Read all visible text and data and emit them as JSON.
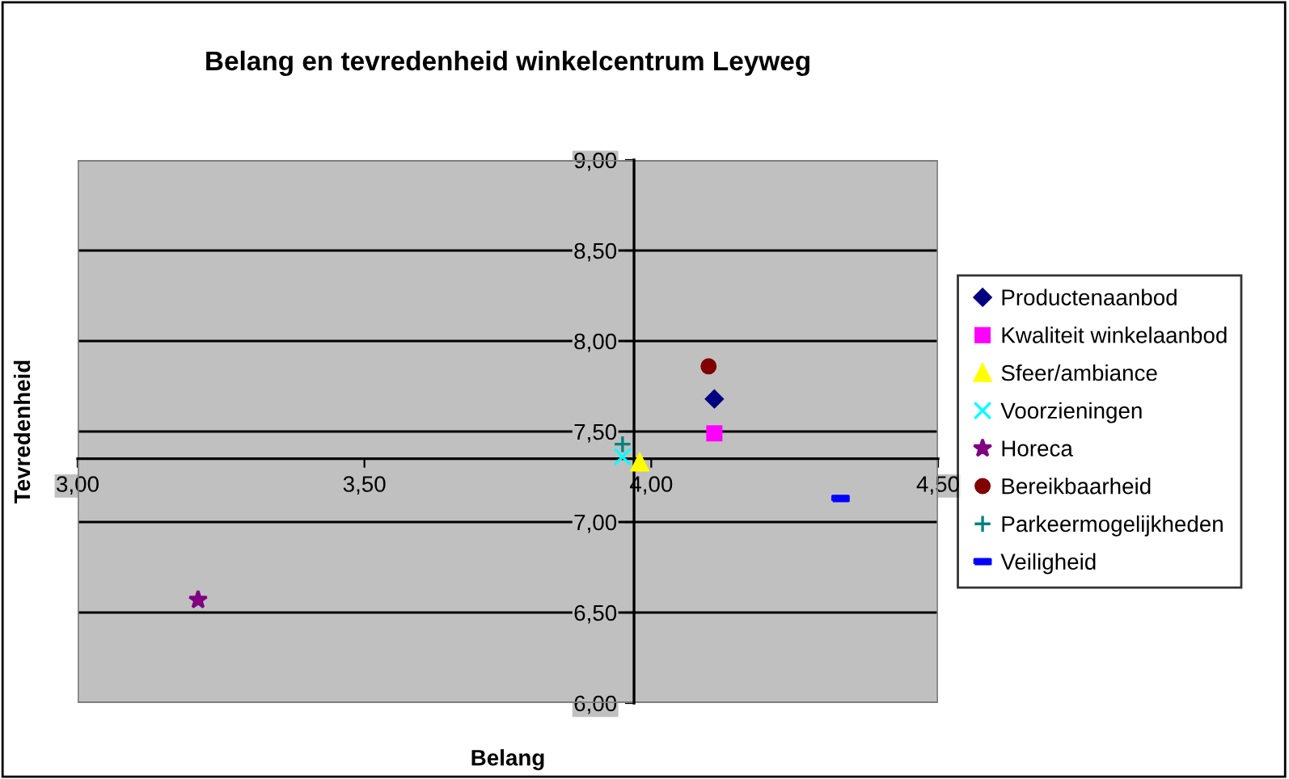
{
  "chart_data": {
    "type": "scatter",
    "title": "Belang en tevredenheid winkelcentrum Leyweg",
    "xlabel": "Belang",
    "ylabel": "Tevredenheid",
    "series": [
      {
        "name": "Productenaanbod",
        "color": "#000080",
        "marker": "diamond",
        "x": [
          4.11
        ],
        "values": [
          7.68
        ]
      },
      {
        "name": "Kwaliteit winkelaanbod",
        "color": "#ff00ff",
        "marker": "square",
        "x": [
          4.11
        ],
        "values": [
          7.49
        ]
      },
      {
        "name": "Sfeer/ambiance",
        "color": "#ffff00",
        "marker": "triangle",
        "x": [
          3.98
        ],
        "values": [
          7.33
        ]
      },
      {
        "name": "Voorzieningen",
        "color": "#00ffff",
        "marker": "cross",
        "x": [
          3.95
        ],
        "values": [
          7.36
        ]
      },
      {
        "name": "Horeca",
        "color": "#800080",
        "marker": "star",
        "x": [
          3.21
        ],
        "values": [
          6.57
        ]
      },
      {
        "name": "Bereikbaarheid",
        "color": "#800000",
        "marker": "circle",
        "x": [
          4.1
        ],
        "values": [
          7.86
        ]
      },
      {
        "name": "Parkeermogelijkheden",
        "color": "#008080",
        "marker": "plus",
        "x": [
          3.95
        ],
        "values": [
          7.43
        ]
      },
      {
        "name": "Veiligheid",
        "color": "#0000ff",
        "x": [
          4.33
        ],
        "values": [
          7.13
        ]
      }
    ],
    "xlim": [
      3.0,
      4.5
    ],
    "ylim": [
      6.0,
      9.0
    ],
    "xticks": [
      {
        "value": 3.0,
        "label": "3,00"
      },
      {
        "value": 3.5,
        "label": "3,50"
      },
      {
        "value": 4.0,
        "label": "4,00"
      },
      {
        "value": 4.5,
        "label": "4,50"
      }
    ],
    "yticks": [
      {
        "value": 6.0,
        "label": "6,00"
      },
      {
        "value": 6.5,
        "label": "6,50"
      },
      {
        "value": 7.0,
        "label": "7,00"
      },
      {
        "value": 7.5,
        "label": "7,50"
      },
      {
        "value": 8.0,
        "label": "8,00"
      },
      {
        "value": 8.5,
        "label": "8,50"
      },
      {
        "value": 9.0,
        "label": "9,00"
      }
    ],
    "grid": "y",
    "legend": "right"
  }
}
